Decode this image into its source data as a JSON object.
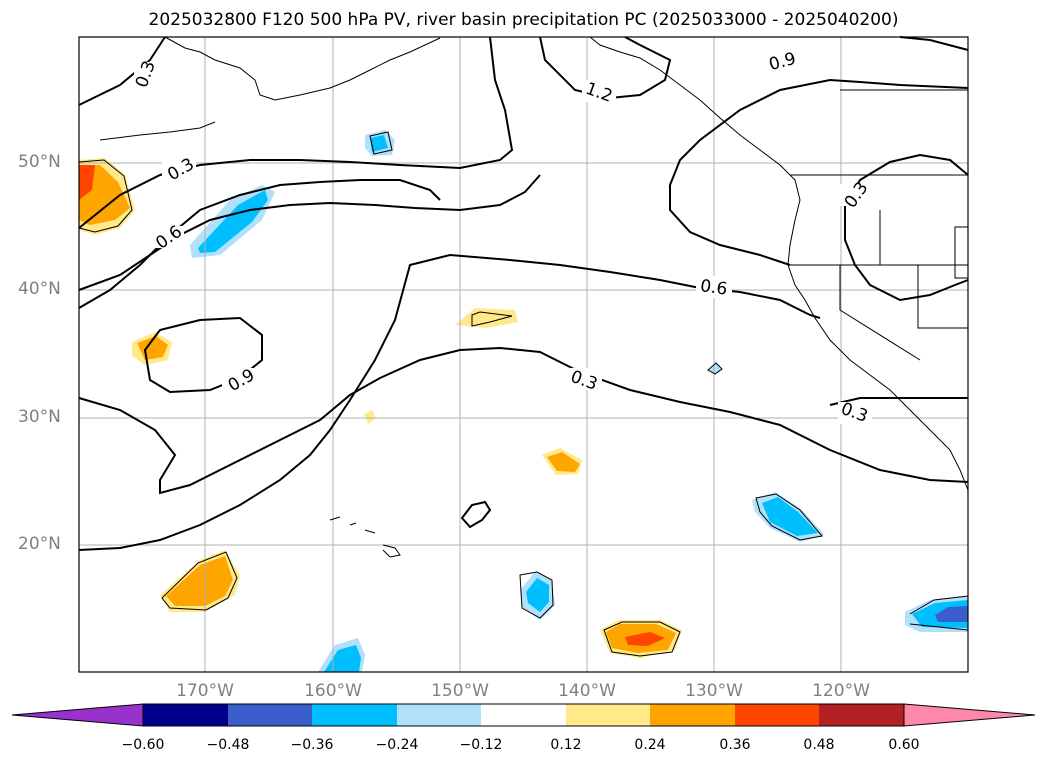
{
  "title": "2025032800 F120 500 hPa PV, river basin precipitation PC (2025033000 - 2025040200)",
  "map": {
    "lon_range": [
      -180,
      -110
    ],
    "lat_range": [
      10,
      60
    ],
    "gridlines": true,
    "lat_labels": [
      "50°N",
      "40°N",
      "30°N",
      "20°N"
    ],
    "lon_labels": [
      "170°W",
      "160°W",
      "150°W",
      "140°W",
      "130°W",
      "120°W"
    ],
    "contour_labels": [
      "0.3",
      "0.3",
      "0.6",
      "0.9",
      "1.2",
      "0.9",
      "0.3",
      "0.6",
      "0.3",
      "0.3"
    ]
  },
  "colorbar": {
    "ticks": [
      "−0.60",
      "−0.48",
      "−0.36",
      "−0.24",
      "−0.12",
      "0.12",
      "0.24",
      "0.36",
      "0.48",
      "0.60"
    ],
    "colors": [
      "#9932cc",
      "#00008b",
      "#3a5fcd",
      "#00bfff",
      "#b0e0fa",
      "#ffffff",
      "#ffe98a",
      "#ffa500",
      "#ff4500",
      "#b22222",
      "#ff88aa"
    ],
    "extend": "both"
  }
}
